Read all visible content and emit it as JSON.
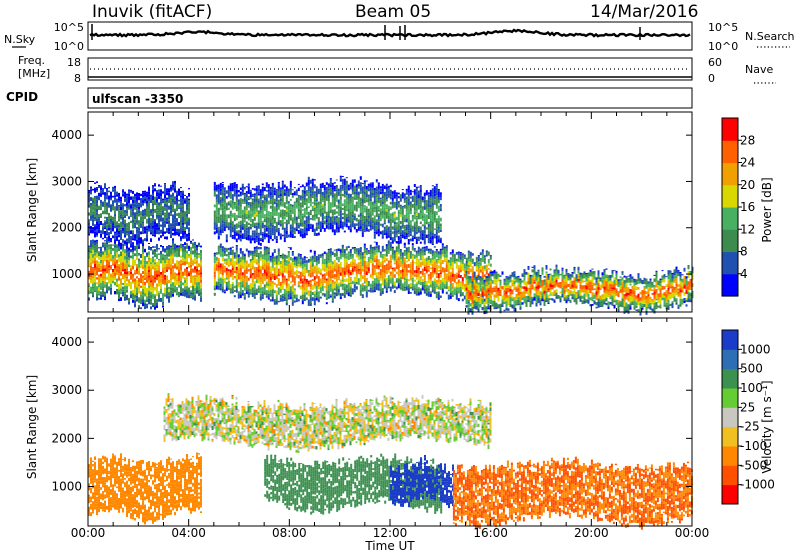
{
  "header": {
    "station": "Inuvik (fitACF)",
    "beam": "Beam 05",
    "date": "14/Mar/2016"
  },
  "sky_panel": {
    "left_label": "N.Sky",
    "left_ticks": [
      "10^5",
      "10^0"
    ],
    "right_label": "N.Search",
    "right_ticks": [
      "10^5",
      "10^0"
    ]
  },
  "freq_panel": {
    "left_label_1": "Freq.",
    "left_label_2": "[MHz]",
    "left_ticks": [
      "18",
      "8"
    ],
    "right_label": "Nave",
    "right_ticks": [
      "60",
      "0"
    ]
  },
  "cpid": {
    "label": "CPID",
    "mode": "ulfscan -3350"
  },
  "time_axis": {
    "label": "Time UT",
    "ticks": [
      "00:00",
      "04:00",
      "08:00",
      "12:00",
      "16:00",
      "20:00",
      "00:00"
    ]
  },
  "range_axis": {
    "ylabel": "Slant Range [km]",
    "ticks": [
      "1000",
      "2000",
      "3000",
      "4000"
    ]
  },
  "power_colorbar": {
    "label": "Power [dB]",
    "ticks": [
      "4",
      "8",
      "12",
      "16",
      "20",
      "24",
      "28"
    ],
    "colors": [
      "#0000ff",
      "#2050b0",
      "#3c8c50",
      "#48b060",
      "#d8d800",
      "#f0a000",
      "#ff6000",
      "#ff0000"
    ]
  },
  "velocity_colorbar": {
    "label": "Velocity [m s⁻¹]",
    "ticks": [
      "1000",
      "500",
      "100",
      "25",
      "-25",
      "-100",
      "-500",
      "-1000"
    ],
    "colors": [
      "#1a3cc8",
      "#2d6eb4",
      "#3c9050",
      "#66cc33",
      "#c8c8c0",
      "#f0c020",
      "#ff8800",
      "#ff5000",
      "#ff0000"
    ]
  },
  "chart_data": [
    {
      "type": "heatmap",
      "name": "Power",
      "xlabel": "Time UT",
      "ylabel": "Slant Range [km]",
      "xlim": [
        0,
        24
      ],
      "ylim": [
        180,
        4500
      ],
      "colorbar_label": "Power [dB]",
      "zlim": [
        0,
        32
      ],
      "echo_bands": [
        {
          "t_start": 0,
          "t_end": 4.5,
          "r_low": 400,
          "r_high": 1600,
          "peak_db": 28
        },
        {
          "t_start": 0,
          "t_end": 4,
          "r_low": 1700,
          "r_high": 2800,
          "peak_db": 10
        },
        {
          "t_start": 5,
          "t_end": 16,
          "r_low": 500,
          "r_high": 1500,
          "peak_db": 28
        },
        {
          "t_start": 5,
          "t_end": 14,
          "r_low": 1800,
          "r_high": 2900,
          "peak_db": 14
        },
        {
          "t_start": 15,
          "t_end": 24,
          "r_low": 300,
          "r_high": 1000,
          "peak_db": 28
        }
      ]
    },
    {
      "type": "heatmap",
      "name": "Velocity",
      "xlabel": "Time UT",
      "ylabel": "Slant Range [km]",
      "xlim": [
        0,
        24
      ],
      "ylim": [
        180,
        4500
      ],
      "colorbar_label": "Velocity [m s⁻¹]",
      "zlim": [
        -1000,
        1000
      ],
      "echo_bands": [
        {
          "t_start": 0,
          "t_end": 4.5,
          "r_low": 400,
          "r_high": 1500,
          "velocity": -150
        },
        {
          "t_start": 3,
          "t_end": 16,
          "r_low": 1900,
          "r_high": 2700,
          "velocity": 0
        },
        {
          "t_start": 7,
          "t_end": 14,
          "r_low": 600,
          "r_high": 1500,
          "velocity": 200
        },
        {
          "t_start": 12,
          "t_end": 14.5,
          "r_low": 700,
          "r_high": 1400,
          "velocity": 900
        },
        {
          "t_start": 14.5,
          "t_end": 24,
          "r_low": 300,
          "r_high": 1400,
          "velocity": -300
        }
      ]
    }
  ]
}
